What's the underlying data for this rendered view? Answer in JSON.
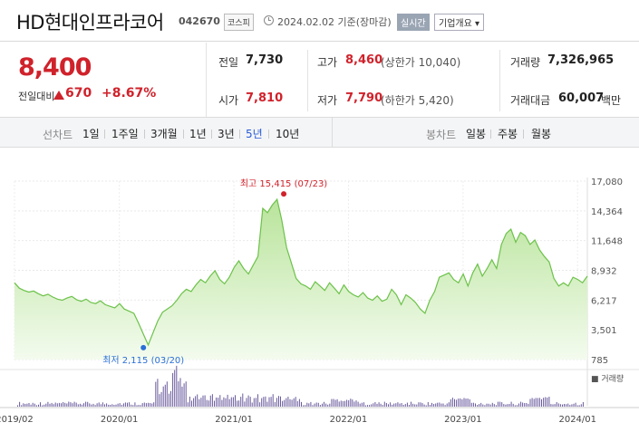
{
  "header": {
    "stock_name": "HD현대인프라코어",
    "stock_code": "042670",
    "market": "코스피",
    "base_date": "2024.02.02 기준(장마감)",
    "realtime_label": "실시간",
    "company_label": "기업개요 ▾"
  },
  "price": {
    "current": "8,400",
    "change_label": "전일대비",
    "change_value": "670",
    "change_rate": "+8.67%"
  },
  "stats": {
    "prev_close_label": "전일",
    "prev_close": "7,730",
    "open_label": "시가",
    "open": "7,810",
    "high_label": "고가",
    "high": "8,460",
    "upper_limit": "(상한가 10,040)",
    "low_label": "저가",
    "low": "7,790",
    "lower_limit": "(하한가 5,420)",
    "volume_label": "거래량",
    "volume": "7,326,965",
    "amount_label": "거래대금",
    "amount": "60,007",
    "amount_unit": "백만"
  },
  "range_tabs": {
    "line_label": "선차트",
    "line_items": [
      "1일",
      "1주일",
      "3개월",
      "1년",
      "3년",
      "5년",
      "10년"
    ],
    "active_index": 5,
    "candle_label": "봉차트",
    "candle_items": [
      "일봉",
      "주봉",
      "월봉"
    ]
  },
  "colors": {
    "up": "#d0222b",
    "active": "#2a5bd7",
    "line": "#6cc24a",
    "fill": "#dff3d2",
    "volume": "#6a5a9c"
  },
  "chart_data": {
    "type": "area",
    "y_ticks": [
      "17,080",
      "14,364",
      "11,648",
      "8,932",
      "6,217",
      "3,501",
      "785"
    ],
    "ylim": [
      785,
      17080
    ],
    "x_ticks": [
      "2019/02",
      "2020/01",
      "2021/01",
      "2022/01",
      "2023/01",
      "2024/01"
    ],
    "x_tick_t": [
      0,
      0.183,
      0.383,
      0.583,
      0.783,
      0.983
    ],
    "high_annotation": "최고 15,415 (07/23)",
    "high_value": 15415,
    "high_t": 0.47,
    "low_annotation": "최저 2,115 (03/20)",
    "low_value": 2115,
    "low_t": 0.225,
    "volume_label": "거래량",
    "series": [
      {
        "values": [
          7800,
          7300,
          7100,
          6950,
          7050,
          6800,
          6600,
          6750,
          6500,
          6300,
          6200,
          6400,
          6550,
          6250,
          6100,
          6300,
          6000,
          5900,
          6150,
          5800,
          5650,
          5500,
          5900,
          5400,
          5200,
          5000,
          4100,
          3100,
          2115,
          3200,
          4300,
          5100,
          5400,
          5700,
          6200,
          6800,
          7200,
          7000,
          7600,
          8100,
          7800,
          8400,
          8900,
          8100,
          7700,
          8300,
          9200,
          9800,
          9100,
          8600,
          9400,
          10200,
          14600,
          14200,
          14900,
          15415,
          13500,
          11000,
          9600,
          8200,
          7700,
          7500,
          7200,
          7900,
          7500,
          7100,
          7800,
          7300,
          6800,
          7600,
          7000,
          6700,
          6500,
          6900,
          6400,
          6200,
          6600,
          6100,
          6300,
          7200,
          6700,
          5800,
          6700,
          6400,
          6000,
          5400,
          5000,
          6200,
          7000,
          8300,
          8500,
          8700,
          8100,
          7800,
          8600,
          7500,
          8700,
          9500,
          8400,
          9100,
          9900,
          9100,
          11300,
          12300,
          12700,
          11500,
          12400,
          12100,
          11300,
          11700,
          10800,
          10200,
          9700,
          8200,
          7500,
          7800,
          7500,
          8300,
          8100,
          7800,
          8400
        ]
      }
    ]
  }
}
